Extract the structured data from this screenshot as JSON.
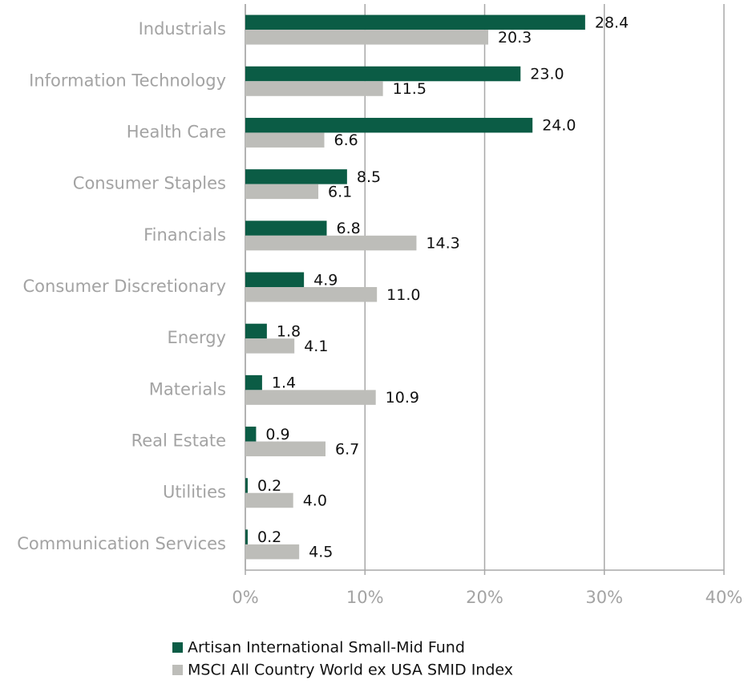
{
  "chart_data": {
    "type": "bar",
    "orientation": "horizontal",
    "categories": [
      "Industrials",
      "Information Technology",
      "Health Care",
      "Consumer Staples",
      "Financials",
      "Consumer Discretionary",
      "Energy",
      "Materials",
      "Real Estate",
      "Utilities",
      "Communication Services"
    ],
    "series": [
      {
        "name": "Artisan International Small-Mid Fund",
        "color": "#0b5c45",
        "values": [
          28.4,
          23.0,
          24.0,
          8.5,
          6.8,
          4.9,
          1.8,
          1.4,
          0.9,
          0.2,
          0.2
        ],
        "value_labels": [
          "28.4",
          "23.0",
          "24.0",
          "8.5",
          "6.8",
          "4.9",
          "1.8",
          "1.4",
          "0.9",
          "0.2",
          "0.2"
        ]
      },
      {
        "name": "MSCI All Country World ex USA SMID Index",
        "color": "#bdbdb9",
        "values": [
          20.3,
          11.5,
          6.6,
          6.1,
          14.3,
          11.0,
          4.1,
          10.9,
          6.7,
          4.0,
          4.5
        ],
        "value_labels": [
          "20.3",
          "11.5",
          "6.6",
          "6.1",
          "14.3",
          "11.0",
          "4.1",
          "10.9",
          "6.7",
          "4.0",
          "4.5"
        ]
      }
    ],
    "xlim": [
      0,
      40
    ],
    "xticks": [
      {
        "value": 0,
        "label": "0%"
      },
      {
        "value": 10,
        "label": "10%"
      },
      {
        "value": 20,
        "label": "20%"
      },
      {
        "value": 30,
        "label": "30%"
      },
      {
        "value": 40,
        "label": "40%"
      }
    ],
    "grid": true,
    "legend": "bottom"
  }
}
